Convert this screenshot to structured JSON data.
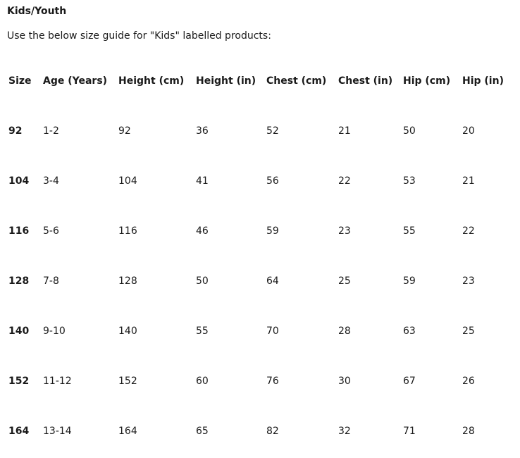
{
  "page": {
    "heading": "Kids/Youth",
    "intro": "Use the below size guide for \"Kids\" labelled products:"
  },
  "table": {
    "headers": [
      "Size",
      "Age (Years)",
      "Height (cm)",
      "Height (in)",
      "Chest (cm)",
      "Chest (in)",
      "Hip (cm)",
      "Hip (in)"
    ],
    "rows": [
      [
        "92",
        "1-2",
        "92",
        "36",
        "52",
        "21",
        "50",
        "20"
      ],
      [
        "104",
        "3-4",
        "104",
        "41",
        "56",
        "22",
        "53",
        "21"
      ],
      [
        "116",
        "5-6",
        "116",
        "46",
        "59",
        "23",
        "55",
        "22"
      ],
      [
        "128",
        "7-8",
        "128",
        "50",
        "64",
        "25",
        "59",
        "23"
      ],
      [
        "140",
        "9-10",
        "140",
        "55",
        "70",
        "28",
        "63",
        "25"
      ],
      [
        "152",
        "11-12",
        "152",
        "60",
        "76",
        "30",
        "67",
        "26"
      ],
      [
        "164",
        "13-14",
        "164",
        "65",
        "82",
        "32",
        "71",
        "28"
      ]
    ]
  }
}
